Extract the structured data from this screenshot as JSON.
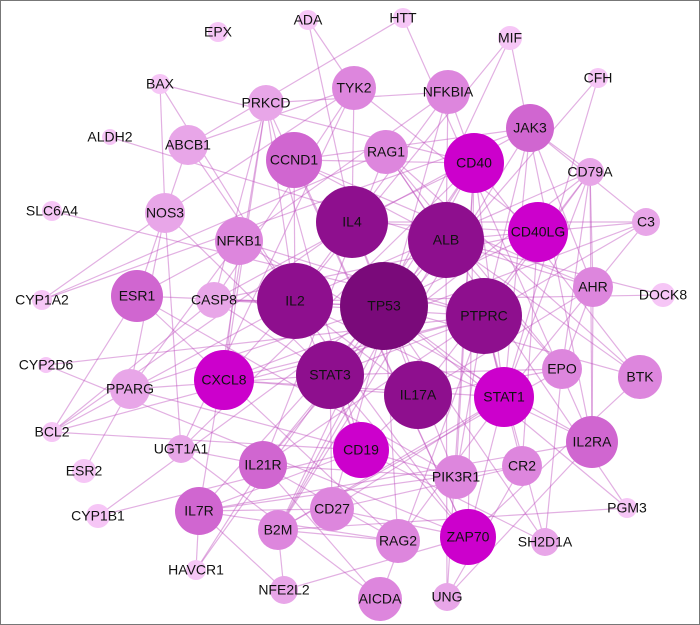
{
  "nodes": [
    {
      "label": "EPX"
    },
    {
      "label": "ADA"
    },
    {
      "label": "HTT"
    },
    {
      "label": "MIF"
    },
    {
      "label": "BAX"
    },
    {
      "label": "CFH"
    },
    {
      "label": "PRKCD"
    },
    {
      "label": "TYK2"
    },
    {
      "label": "NFKBIA"
    },
    {
      "label": "JAK3"
    },
    {
      "label": "ALDH2"
    },
    {
      "label": "ABCB1"
    },
    {
      "label": "CCND1"
    },
    {
      "label": "RAG1"
    },
    {
      "label": "CD40"
    },
    {
      "label": "CD79A"
    },
    {
      "label": "SLC6A4"
    },
    {
      "label": "NOS3"
    },
    {
      "label": "IL4"
    },
    {
      "label": "ALB"
    },
    {
      "label": "CD40LG"
    },
    {
      "label": "C3"
    },
    {
      "label": "NFKB1"
    },
    {
      "label": "CYP1A2"
    },
    {
      "label": "ESR1"
    },
    {
      "label": "CASP8"
    },
    {
      "label": "IL2"
    },
    {
      "label": "TP53"
    },
    {
      "label": "PTPRC"
    },
    {
      "label": "AHR"
    },
    {
      "label": "DOCK8"
    },
    {
      "label": "CYP2D6"
    },
    {
      "label": "PPARG"
    },
    {
      "label": "CXCL8"
    },
    {
      "label": "STAT3"
    },
    {
      "label": "IL17A"
    },
    {
      "label": "STAT1"
    },
    {
      "label": "EPO"
    },
    {
      "label": "BTK"
    },
    {
      "label": "BCL2"
    },
    {
      "label": "UGT1A1"
    },
    {
      "label": "IL21R"
    },
    {
      "label": "CD19"
    },
    {
      "label": "PIK3R1"
    },
    {
      "label": "CR2"
    },
    {
      "label": "IL2RA"
    },
    {
      "label": "ESR2"
    },
    {
      "label": "CYP1B1"
    },
    {
      "label": "IL7R"
    },
    {
      "label": "B2M"
    },
    {
      "label": "CD27"
    },
    {
      "label": "RAG2"
    },
    {
      "label": "ZAP70"
    },
    {
      "label": "SH2D1A"
    },
    {
      "label": "PGM3"
    },
    {
      "label": "HAVCR1"
    },
    {
      "label": "NFE2L2"
    },
    {
      "label": "AICDA"
    },
    {
      "label": "UNG"
    }
  ]
}
